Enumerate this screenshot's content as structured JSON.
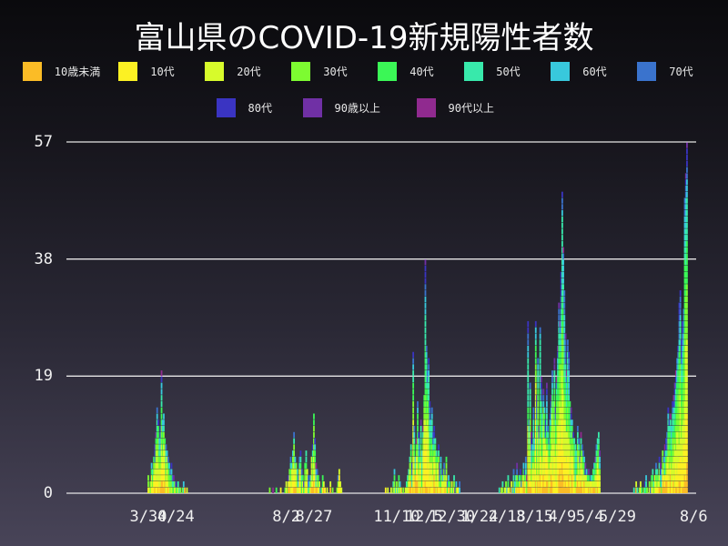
{
  "title": "富山県のCOVID-19新規陽性者数",
  "legend": [
    {
      "label": "10歳未満",
      "color": "#fbbc26"
    },
    {
      "label": "10代",
      "color": "#fcf123"
    },
    {
      "label": "20代",
      "color": "#d7fb2b"
    },
    {
      "label": "30代",
      "color": "#7dfb31"
    },
    {
      "label": "40代",
      "color": "#3bf756"
    },
    {
      "label": "50代",
      "color": "#38e9ab"
    },
    {
      "label": "60代",
      "color": "#38c8dc"
    },
    {
      "label": "70代",
      "color": "#3a73cd"
    },
    {
      "label": "80代",
      "color": "#3a34c2"
    },
    {
      "label": "90歳以上",
      "color": "#7030a5"
    },
    {
      "label": "90代以上",
      "color": "#902a8f"
    }
  ],
  "chart_data": {
    "type": "bar",
    "stacked": true,
    "title": "富山県のCOVID-19新規陽性者数",
    "xlabel": "",
    "ylabel": "",
    "ylim": [
      0,
      57
    ],
    "yticks": [
      0,
      19,
      38,
      57
    ],
    "grid": true,
    "legend_position": "top",
    "x_start": "3/30",
    "x_end": "8/6",
    "xtick_labels": [
      "3/30",
      "4/24",
      "8/2",
      "8/27",
      "11/10",
      "12/5",
      "12/30",
      "1/24",
      "2/18",
      "3/15",
      "4/9",
      "5/4",
      "5/29",
      "8/6"
    ],
    "xtick_day_offsets": [
      0,
      25,
      125,
      150,
      225,
      250,
      275,
      300,
      325,
      350,
      375,
      400,
      425,
      494
    ],
    "series_names": [
      "10歳未満",
      "10代",
      "20代",
      "30代",
      "40代",
      "50代",
      "60代",
      "70代",
      "80代",
      "90歳以上",
      "90代以上"
    ],
    "daily_totals_by_wave": [
      {
        "start_offset": 0,
        "values": [
          3,
          1,
          2,
          5,
          4,
          6,
          8,
          10,
          14,
          12,
          9,
          11,
          20,
          12,
          13,
          9,
          8,
          7,
          6,
          5,
          4,
          5,
          3,
          3,
          2,
          2,
          1,
          2,
          1,
          1,
          0,
          1,
          2,
          1,
          0,
          1
        ]
      },
      {
        "start_offset": 110,
        "values": [
          1,
          0,
          0,
          1,
          0,
          0,
          1,
          0,
          0,
          0,
          1,
          0,
          0,
          0,
          1,
          2,
          1,
          3,
          4,
          6,
          5,
          7,
          10,
          6,
          5,
          4,
          3,
          6,
          7,
          4,
          3,
          2,
          5,
          7,
          4,
          3,
          2,
          3,
          6,
          8,
          13,
          9,
          5,
          4,
          3,
          2,
          1,
          1,
          3,
          2,
          1,
          0,
          1,
          0,
          0,
          2,
          0,
          1,
          0,
          0,
          0,
          1,
          3,
          4,
          2,
          1,
          0
        ]
      },
      {
        "start_offset": 215,
        "values": [
          1,
          0,
          1,
          0,
          0,
          1,
          0,
          2,
          4,
          1,
          2,
          1,
          3,
          2,
          1,
          0,
          1,
          0,
          1,
          2,
          3,
          4,
          6,
          8,
          5,
          23,
          11,
          6,
          9,
          15,
          10,
          8,
          12,
          7,
          11,
          16,
          38,
          24,
          20,
          22,
          15,
          12,
          14,
          10,
          11,
          9,
          7,
          6,
          8,
          5,
          6,
          4,
          3,
          5,
          4,
          6,
          2,
          3,
          2,
          1,
          2,
          1,
          3,
          1,
          2,
          1,
          1,
          2
        ]
      },
      {
        "start_offset": 318,
        "values": [
          1,
          0,
          1,
          2,
          0,
          1,
          2,
          1,
          3,
          1,
          0,
          2,
          1,
          4,
          2,
          3,
          5,
          2,
          3,
          4,
          2,
          3,
          5,
          4,
          6,
          3,
          28,
          12,
          18,
          10,
          8,
          14,
          9,
          28,
          16,
          22,
          11,
          27,
          19,
          13,
          17,
          14,
          12,
          18,
          11,
          9,
          13,
          16,
          20,
          15,
          22,
          14,
          19,
          24,
          31,
          28,
          36,
          49,
          40,
          33,
          26,
          20,
          25,
          23,
          15,
          14,
          12,
          10,
          9,
          8,
          7,
          11,
          9,
          6,
          10,
          8,
          7,
          6,
          5,
          4,
          3,
          4,
          2,
          3,
          3,
          4,
          5,
          6,
          8,
          9,
          10,
          7
        ]
      },
      {
        "start_offset": 440,
        "values": [
          1,
          0,
          2,
          1,
          0,
          1,
          2,
          1,
          0,
          1,
          2,
          3,
          1,
          0,
          2,
          1,
          3,
          4,
          2,
          3,
          5,
          4,
          3,
          6,
          5,
          4,
          7,
          6,
          8,
          9,
          10,
          14,
          12,
          13,
          11,
          15,
          16,
          18,
          20,
          22,
          24,
          31,
          33,
          25,
          28,
          30,
          48,
          52,
          57
        ]
      }
    ]
  },
  "yaxis": {
    "ticks": [
      "0",
      "19",
      "38",
      "57"
    ]
  }
}
